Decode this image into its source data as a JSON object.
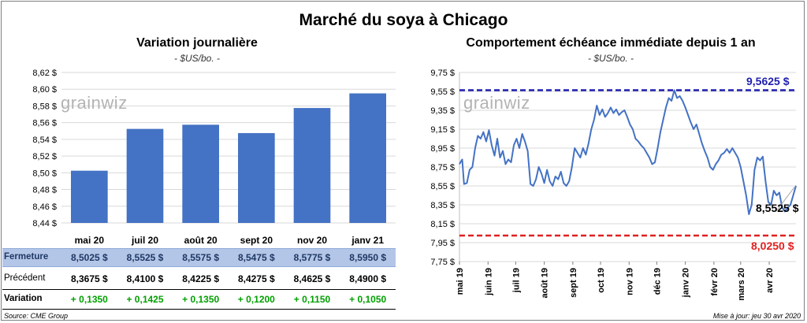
{
  "title": "Marché du soya à Chicago",
  "left": {
    "subtitle": "Variation journalière",
    "unit": "- $US/bo. -",
    "watermark": "grainwiz"
  },
  "right": {
    "subtitle": "Comportement  échéance immédiate depuis 1 an",
    "unit": "- $US/bo. -",
    "watermark": "grainwiz",
    "max_label": "9,5625 $",
    "min_label": "8,0250 $",
    "last_label": "8,5525 $"
  },
  "table": {
    "row_labels": [
      "Fermeture",
      "Précédent",
      "Variation"
    ],
    "fermeture": [
      "8,5025  $",
      "8,5525  $",
      "8,5575  $",
      "8,5475  $",
      "8,5775  $",
      "8,5950  $"
    ],
    "precedent": [
      "8,3675  $",
      "8,4100  $",
      "8,4225  $",
      "8,4275  $",
      "8,4625  $",
      "8,4900  $"
    ],
    "variation": [
      "+ 0,1350",
      "+ 0,1425",
      "+ 0,1350",
      "+ 0,1200",
      "+ 0,1150",
      "+ 0,1050"
    ]
  },
  "source": "Source: CME Group",
  "update": "Mise à jour: jeu 30 avr 2020",
  "colors": {
    "bar": "#4472c4",
    "line": "#4472c4",
    "max_line": "#1f1fb0",
    "min_line": "#e02020",
    "positive": "#00a000",
    "fermeture_band": "#b4c6e7"
  },
  "chart_data": [
    {
      "type": "bar",
      "title": "Variation journalière",
      "subtitle": "- $US/bo. -",
      "categories": [
        "mai 20",
        "juil 20",
        "août 20",
        "sept 20",
        "nov 20",
        "janv 21"
      ],
      "values": [
        8.5025,
        8.5525,
        8.5575,
        8.5475,
        8.5775,
        8.595
      ],
      "ylim": [
        8.44,
        8.62
      ],
      "yticks": [
        8.44,
        8.46,
        8.48,
        8.5,
        8.52,
        8.54,
        8.56,
        8.58,
        8.6,
        8.62
      ],
      "ytick_labels": [
        "8,44 $",
        "8,46 $",
        "8,48 $",
        "8,50 $",
        "8,52 $",
        "8,54 $",
        "8,56 $",
        "8,58 $",
        "8,60 $",
        "8,62 $"
      ],
      "grid": true,
      "color": "#4472c4"
    },
    {
      "type": "line",
      "title": "Comportement  échéance immédiate depuis 1 an",
      "subtitle": "- $US/bo. -",
      "ylim": [
        7.75,
        9.75
      ],
      "yticks": [
        7.75,
        7.95,
        8.15,
        8.35,
        8.55,
        8.75,
        8.95,
        9.15,
        9.35,
        9.55,
        9.75
      ],
      "ytick_labels": [
        "7,75 $",
        "7,95 $",
        "8,15 $",
        "8,35 $",
        "8,55 $",
        "8,75 $",
        "8,95 $",
        "9,15 $",
        "9,35 $",
        "9,55 $",
        "9,75 $"
      ],
      "xlim": [
        "2019-05-01",
        "2020-04-30"
      ],
      "xticks": [
        "2019-05-01",
        "2019-06-01",
        "2019-07-01",
        "2019-08-01",
        "2019-09-01",
        "2019-10-01",
        "2019-11-01",
        "2019-12-01",
        "2020-01-01",
        "2020-02-01",
        "2020-03-01",
        "2020-04-01"
      ],
      "xtick_labels": [
        "mai 19",
        "juin 19",
        "juil 19",
        "août 19",
        "sept 19",
        "oct 19",
        "nov 19",
        "déc 19",
        "janv 20",
        "févr 20",
        "mars 20",
        "avr 20"
      ],
      "reference_lines": [
        {
          "value": 9.5625,
          "label": "9,5625 $",
          "color": "#1f1fb0",
          "style": "dashed"
        },
        {
          "value": 8.025,
          "label": "8,0250 $",
          "color": "#e02020",
          "style": "dashed"
        }
      ],
      "last_value": {
        "value": 8.5525,
        "label": "8,5525 $"
      },
      "series": [
        {
          "color": "#4472c4",
          "points": [
            [
              "2019-05-01",
              8.78
            ],
            [
              "2019-05-04",
              8.83
            ],
            [
              "2019-05-06",
              8.57
            ],
            [
              "2019-05-09",
              8.58
            ],
            [
              "2019-05-12",
              8.72
            ],
            [
              "2019-05-15",
              8.75
            ],
            [
              "2019-05-18",
              8.95
            ],
            [
              "2019-05-21",
              9.08
            ],
            [
              "2019-05-24",
              9.05
            ],
            [
              "2019-05-27",
              9.12
            ],
            [
              "2019-05-30",
              9.02
            ],
            [
              "2019-06-02",
              9.14
            ],
            [
              "2019-06-05",
              8.98
            ],
            [
              "2019-06-08",
              8.87
            ],
            [
              "2019-06-11",
              9.05
            ],
            [
              "2019-06-14",
              8.85
            ],
            [
              "2019-06-17",
              8.92
            ],
            [
              "2019-06-20",
              8.78
            ],
            [
              "2019-06-23",
              8.83
            ],
            [
              "2019-06-26",
              8.8
            ],
            [
              "2019-06-29",
              8.98
            ],
            [
              "2019-07-02",
              9.05
            ],
            [
              "2019-07-05",
              8.95
            ],
            [
              "2019-07-08",
              9.1
            ],
            [
              "2019-07-11",
              9.02
            ],
            [
              "2019-07-14",
              8.92
            ],
            [
              "2019-07-17",
              8.57
            ],
            [
              "2019-07-20",
              8.55
            ],
            [
              "2019-07-23",
              8.62
            ],
            [
              "2019-07-26",
              8.75
            ],
            [
              "2019-07-29",
              8.68
            ],
            [
              "2019-08-01",
              8.58
            ],
            [
              "2019-08-04",
              8.72
            ],
            [
              "2019-08-07",
              8.6
            ],
            [
              "2019-08-10",
              8.55
            ],
            [
              "2019-08-13",
              8.65
            ],
            [
              "2019-08-16",
              8.62
            ],
            [
              "2019-08-19",
              8.7
            ],
            [
              "2019-08-22",
              8.58
            ],
            [
              "2019-08-25",
              8.55
            ],
            [
              "2019-08-28",
              8.6
            ],
            [
              "2019-08-31",
              8.75
            ],
            [
              "2019-09-03",
              8.95
            ],
            [
              "2019-09-06",
              8.9
            ],
            [
              "2019-09-09",
              8.85
            ],
            [
              "2019-09-12",
              8.95
            ],
            [
              "2019-09-15",
              8.88
            ],
            [
              "2019-09-18",
              9.0
            ],
            [
              "2019-09-21",
              9.15
            ],
            [
              "2019-09-24",
              9.25
            ],
            [
              "2019-09-27",
              9.4
            ],
            [
              "2019-09-30",
              9.3
            ],
            [
              "2019-10-03",
              9.36
            ],
            [
              "2019-10-06",
              9.28
            ],
            [
              "2019-10-09",
              9.32
            ],
            [
              "2019-10-12",
              9.38
            ],
            [
              "2019-10-15",
              9.32
            ],
            [
              "2019-10-18",
              9.36
            ],
            [
              "2019-10-21",
              9.3
            ],
            [
              "2019-10-24",
              9.33
            ],
            [
              "2019-10-27",
              9.35
            ],
            [
              "2019-10-30",
              9.28
            ],
            [
              "2019-11-02",
              9.2
            ],
            [
              "2019-11-05",
              9.15
            ],
            [
              "2019-11-08",
              9.05
            ],
            [
              "2019-11-11",
              9.02
            ],
            [
              "2019-11-14",
              8.98
            ],
            [
              "2019-11-17",
              8.95
            ],
            [
              "2019-11-20",
              8.9
            ],
            [
              "2019-11-23",
              8.85
            ],
            [
              "2019-11-26",
              8.78
            ],
            [
              "2019-11-29",
              8.8
            ],
            [
              "2019-12-02",
              8.95
            ],
            [
              "2019-12-05",
              9.12
            ],
            [
              "2019-12-08",
              9.25
            ],
            [
              "2019-12-11",
              9.38
            ],
            [
              "2019-12-14",
              9.48
            ],
            [
              "2019-12-17",
              9.45
            ],
            [
              "2019-12-20",
              9.5625
            ],
            [
              "2019-12-23",
              9.48
            ],
            [
              "2019-12-26",
              9.5
            ],
            [
              "2019-12-29",
              9.45
            ],
            [
              "2020-01-01",
              9.38
            ],
            [
              "2020-01-04",
              9.3
            ],
            [
              "2020-01-07",
              9.22
            ],
            [
              "2020-01-10",
              9.15
            ],
            [
              "2020-01-13",
              9.2
            ],
            [
              "2020-01-16",
              9.1
            ],
            [
              "2020-01-19",
              9.0
            ],
            [
              "2020-01-22",
              8.92
            ],
            [
              "2020-01-25",
              8.85
            ],
            [
              "2020-01-28",
              8.75
            ],
            [
              "2020-01-31",
              8.72
            ],
            [
              "2020-02-03",
              8.78
            ],
            [
              "2020-02-06",
              8.82
            ],
            [
              "2020-02-09",
              8.88
            ],
            [
              "2020-02-12",
              8.9
            ],
            [
              "2020-02-15",
              8.94
            ],
            [
              "2020-02-18",
              8.9
            ],
            [
              "2020-02-21",
              8.95
            ],
            [
              "2020-02-24",
              8.9
            ],
            [
              "2020-02-27",
              8.85
            ],
            [
              "2020-03-01",
              8.75
            ],
            [
              "2020-03-04",
              8.6
            ],
            [
              "2020-03-07",
              8.45
            ],
            [
              "2020-03-10",
              8.25
            ],
            [
              "2020-03-13",
              8.35
            ],
            [
              "2020-03-16",
              8.72
            ],
            [
              "2020-03-19",
              8.85
            ],
            [
              "2020-03-22",
              8.82
            ],
            [
              "2020-03-25",
              8.86
            ],
            [
              "2020-03-28",
              8.6
            ],
            [
              "2020-03-31",
              8.38
            ],
            [
              "2020-04-03",
              8.35
            ],
            [
              "2020-04-06",
              8.5
            ],
            [
              "2020-04-09",
              8.45
            ],
            [
              "2020-04-12",
              8.48
            ],
            [
              "2020-04-15",
              8.32
            ],
            [
              "2020-04-18",
              8.28
            ],
            [
              "2020-04-21",
              8.32
            ],
            [
              "2020-04-24",
              8.35
            ],
            [
              "2020-04-27",
              8.45
            ],
            [
              "2020-04-30",
              8.5525
            ]
          ]
        }
      ],
      "grid": true
    }
  ]
}
